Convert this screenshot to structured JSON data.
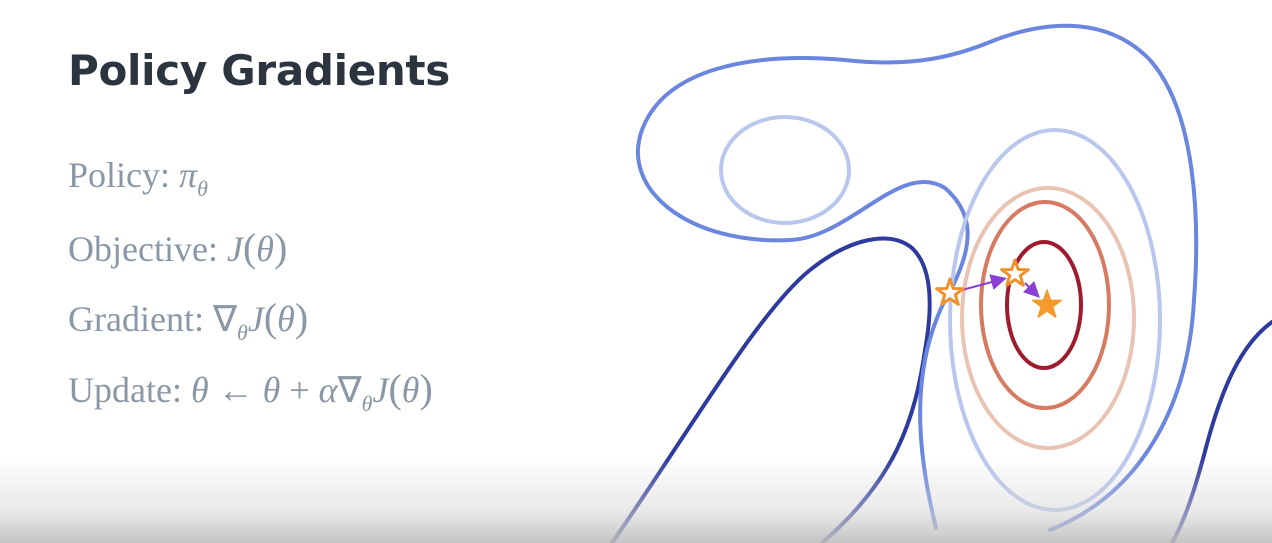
{
  "slide": {
    "title": "Policy Gradients",
    "equations": [
      {
        "label": "Policy:",
        "expr": "π",
        "sub": "θ"
      },
      {
        "label": "Objective:",
        "expr": "J(θ)"
      },
      {
        "label": "Gradient:",
        "expr": "∇θJ(θ)"
      },
      {
        "label": "Update:",
        "expr": "θ ← θ + α∇θJ(θ)"
      }
    ]
  },
  "diagram": {
    "contour_colors": [
      "#2e3a9e",
      "#6a86df",
      "#b9c7ee",
      "#e9c3b3",
      "#d77a62",
      "#9e1b2e"
    ],
    "marker_colors": {
      "outline_star": "#f0902a",
      "filled_star": "#f59a2e",
      "arrow": "#8b3fd6"
    },
    "icons": [
      "star-outline-icon",
      "star-outline-icon",
      "star-filled-icon",
      "arrow-icon"
    ]
  }
}
